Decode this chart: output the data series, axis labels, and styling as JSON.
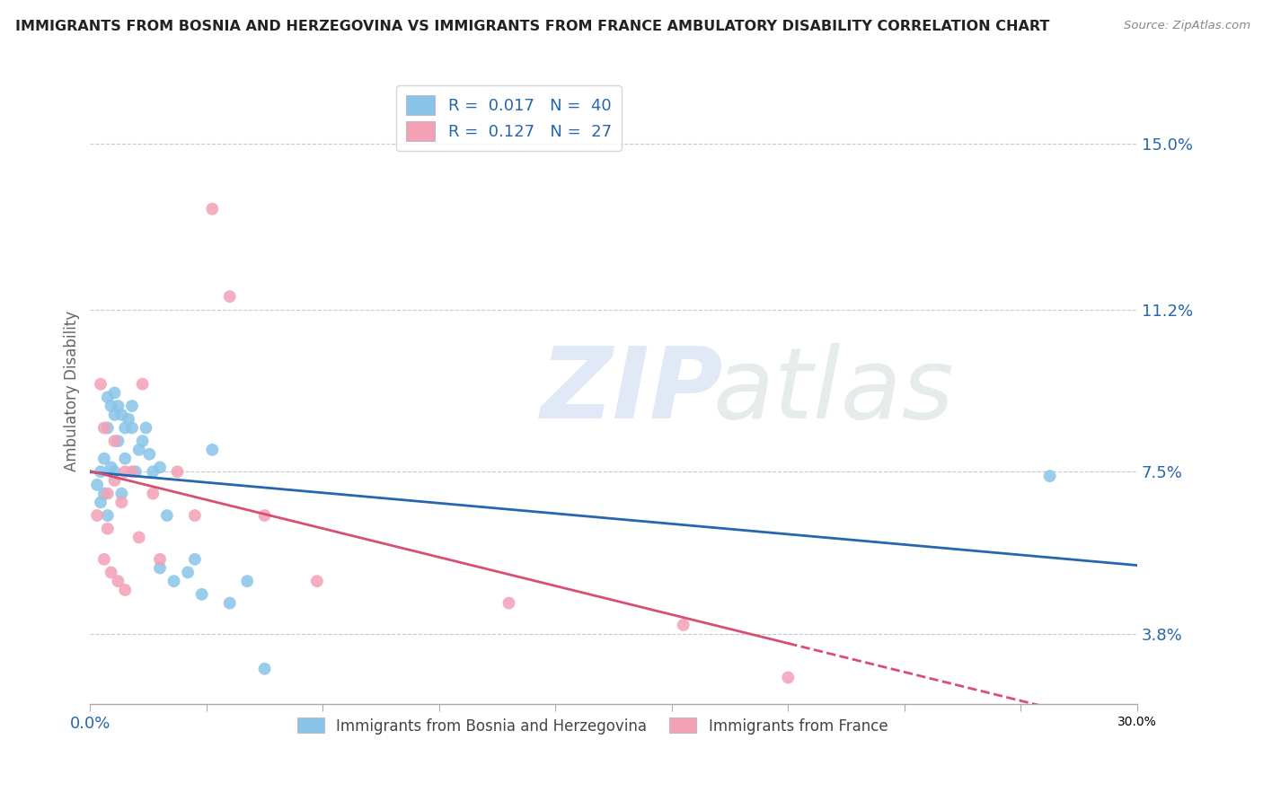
{
  "title": "IMMIGRANTS FROM BOSNIA AND HERZEGOVINA VS IMMIGRANTS FROM FRANCE AMBULATORY DISABILITY CORRELATION CHART",
  "source": "Source: ZipAtlas.com",
  "ylabel": "Ambulatory Disability",
  "yticks": [
    3.8,
    7.5,
    11.2,
    15.0
  ],
  "ytick_labels": [
    "3.8%",
    "7.5%",
    "11.2%",
    "15.0%"
  ],
  "xlim": [
    0.0,
    30.0
  ],
  "ylim": [
    2.2,
    16.5
  ],
  "color_bosnia": "#89C4E8",
  "color_france": "#F4A0B5",
  "line_color_bosnia": "#2566AE",
  "line_color_france": "#D94F72",
  "bosnia_x": [
    0.2,
    0.3,
    0.3,
    0.4,
    0.4,
    0.5,
    0.5,
    0.5,
    0.6,
    0.6,
    0.7,
    0.7,
    0.7,
    0.8,
    0.8,
    0.9,
    0.9,
    1.0,
    1.0,
    1.1,
    1.2,
    1.2,
    1.3,
    1.4,
    1.5,
    1.6,
    1.7,
    1.8,
    2.0,
    2.0,
    2.2,
    2.4,
    2.8,
    3.0,
    3.2,
    3.5,
    4.0,
    4.5,
    5.0,
    27.5
  ],
  "bosnia_y": [
    7.2,
    7.5,
    6.8,
    7.8,
    7.0,
    9.2,
    8.5,
    6.5,
    9.0,
    7.6,
    9.3,
    8.8,
    7.5,
    9.0,
    8.2,
    8.8,
    7.0,
    8.5,
    7.8,
    8.7,
    9.0,
    8.5,
    7.5,
    8.0,
    8.2,
    8.5,
    7.9,
    7.5,
    5.3,
    7.6,
    6.5,
    5.0,
    5.2,
    5.5,
    4.7,
    8.0,
    4.5,
    5.0,
    3.0,
    7.4
  ],
  "france_x": [
    0.2,
    0.3,
    0.4,
    0.4,
    0.5,
    0.5,
    0.6,
    0.7,
    0.7,
    0.8,
    0.9,
    1.0,
    1.0,
    1.2,
    1.4,
    1.5,
    1.8,
    2.0,
    2.5,
    3.0,
    3.5,
    4.0,
    5.0,
    6.5,
    12.0,
    17.0,
    20.0
  ],
  "france_y": [
    6.5,
    9.5,
    5.5,
    8.5,
    7.0,
    6.2,
    5.2,
    8.2,
    7.3,
    5.0,
    6.8,
    7.5,
    4.8,
    7.5,
    6.0,
    9.5,
    7.0,
    5.5,
    7.5,
    6.5,
    13.5,
    11.5,
    6.5,
    5.0,
    4.5,
    4.0,
    2.8
  ]
}
